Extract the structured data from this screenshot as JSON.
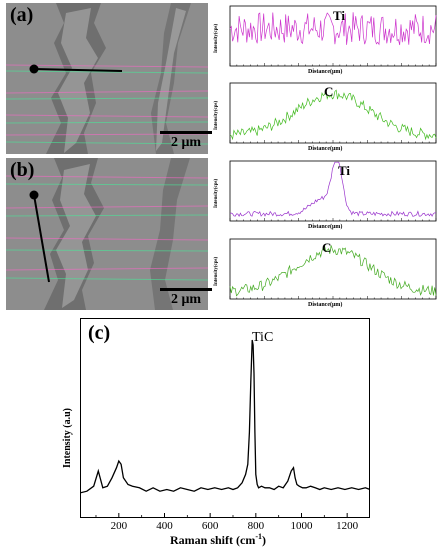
{
  "panels": {
    "a": {
      "label": "(a)"
    },
    "b": {
      "label": "(b)"
    },
    "c": {
      "label": "(c)"
    }
  },
  "scale_bar": {
    "text": "2 μm"
  },
  "linescans": {
    "a_ti": {
      "element": "Ti",
      "xlabel": "Distance(μm)",
      "ylabel": "Intensity(cps)",
      "color": "#cc33cc",
      "profile": "noise"
    },
    "a_c": {
      "element": "C",
      "xlabel": "Distance(μm)",
      "ylabel": "Intensity(cps)",
      "color": "#44bb22",
      "profile": "dome"
    },
    "b_ti": {
      "element": "Ti",
      "xlabel": "Distance(μm)",
      "ylabel": "Intensity(cps)",
      "color": "#9933cc",
      "profile": "peak"
    },
    "b_c": {
      "element": "C",
      "xlabel": "Distance(μm)",
      "ylabel": "Intensity(cps)",
      "color": "#44aa22",
      "profile": "dome"
    }
  },
  "chart_data": {
    "type": "line",
    "xlabel": "Raman shift (cm",
    "xlabel_sup": "-1",
    "xlabel_close": ")",
    "ylabel": "Intensity (a.u)",
    "xlim": [
      30,
      1300
    ],
    "xticks": [
      "200",
      "400",
      "600",
      "800",
      "1000",
      "1200"
    ],
    "annotation": {
      "text": "TiC",
      "x": 790
    },
    "series": [
      {
        "color": "#000000",
        "x": [
          30,
          60,
          90,
          110,
          130,
          150,
          170,
          190,
          200,
          210,
          220,
          240,
          260,
          290,
          320,
          350,
          380,
          410,
          440,
          470,
          500,
          530,
          560,
          590,
          620,
          650,
          680,
          700,
          720,
          740,
          755,
          765,
          772,
          778,
          784,
          788,
          792,
          796,
          800,
          806,
          812,
          825,
          840,
          860,
          880,
          900,
          920,
          940,
          955,
          965,
          972,
          980,
          990,
          1005,
          1020,
          1040,
          1060,
          1080,
          1100,
          1130,
          1160,
          1190,
          1220,
          1250,
          1280,
          1300
        ],
        "y": [
          0.09,
          0.1,
          0.13,
          0.22,
          0.12,
          0.13,
          0.18,
          0.24,
          0.28,
          0.26,
          0.18,
          0.14,
          0.13,
          0.12,
          0.1,
          0.12,
          0.1,
          0.11,
          0.1,
          0.12,
          0.11,
          0.1,
          0.12,
          0.11,
          0.12,
          0.11,
          0.12,
          0.11,
          0.12,
          0.15,
          0.2,
          0.26,
          0.45,
          0.75,
          1.0,
          0.97,
          0.8,
          0.45,
          0.2,
          0.14,
          0.12,
          0.13,
          0.12,
          0.12,
          0.11,
          0.13,
          0.12,
          0.16,
          0.22,
          0.24,
          0.18,
          0.14,
          0.13,
          0.12,
          0.12,
          0.13,
          0.12,
          0.11,
          0.12,
          0.11,
          0.12,
          0.11,
          0.12,
          0.11,
          0.12,
          0.11
        ]
      }
    ]
  }
}
